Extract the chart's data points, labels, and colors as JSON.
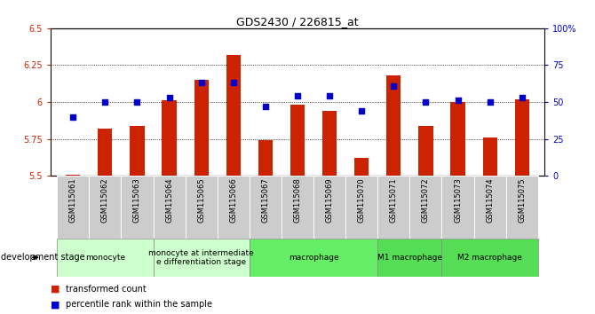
{
  "title": "GDS2430 / 226815_at",
  "samples": [
    "GSM115061",
    "GSM115062",
    "GSM115063",
    "GSM115064",
    "GSM115065",
    "GSM115066",
    "GSM115067",
    "GSM115068",
    "GSM115069",
    "GSM115070",
    "GSM115071",
    "GSM115072",
    "GSM115073",
    "GSM115074",
    "GSM115075"
  ],
  "transformed_count": [
    5.51,
    5.82,
    5.84,
    6.01,
    6.15,
    6.32,
    5.74,
    5.98,
    5.94,
    5.62,
    6.18,
    5.84,
    6.0,
    5.76,
    6.02
  ],
  "percentile_rank": [
    40,
    50,
    50,
    53,
    63,
    63,
    47,
    54,
    54,
    44,
    61,
    50,
    51,
    50,
    53
  ],
  "ylim_left": [
    5.5,
    6.5
  ],
  "ylim_right": [
    0,
    100
  ],
  "yticks_left": [
    5.5,
    5.75,
    6.0,
    6.25,
    6.5
  ],
  "yticks_right": [
    0,
    25,
    50,
    75,
    100
  ],
  "bar_color": "#cc2200",
  "dot_color": "#0000cc",
  "legend_red": "transformed count",
  "legend_blue": "percentile rank within the sample",
  "dev_stage_label": "development stage",
  "background_color": "#ffffff",
  "sample_bg_color": "#cccccc",
  "groups": [
    {
      "label": "monocyte",
      "cols": [
        0,
        1,
        2
      ],
      "color": "#ccffcc"
    },
    {
      "label": "monocyte at intermediate\ne differentiation stage",
      "cols": [
        3,
        4,
        5
      ],
      "color": "#ccffcc"
    },
    {
      "label": "macrophage",
      "cols": [
        6,
        7,
        8,
        9
      ],
      "color": "#66ee66"
    },
    {
      "label": "M1 macrophage",
      "cols": [
        10,
        11
      ],
      "color": "#55dd55"
    },
    {
      "label": "M2 macrophage",
      "cols": [
        12,
        13,
        14
      ],
      "color": "#55dd55"
    }
  ]
}
